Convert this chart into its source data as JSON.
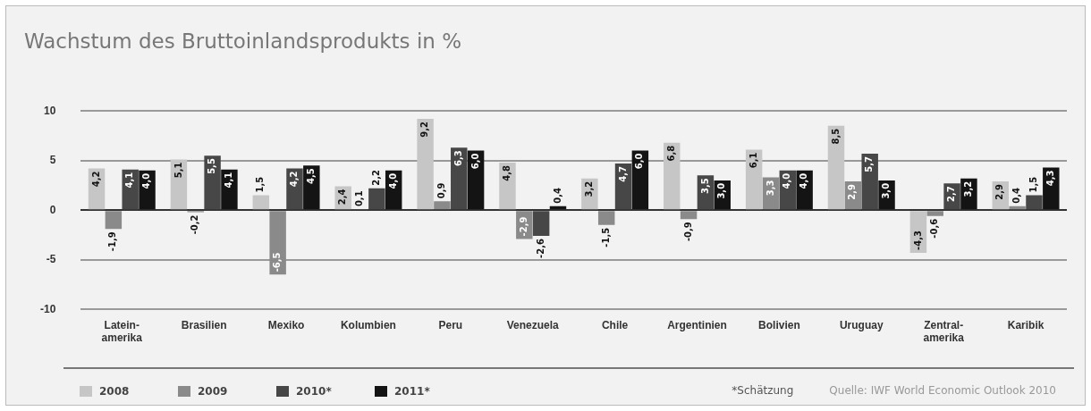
{
  "chart_data": {
    "type": "bar",
    "title": "Wachstum des Bruttoinlandsprodukts in %",
    "categories": [
      "Latein-\namerika",
      "Brasilien",
      "Mexiko",
      "Kolumbien",
      "Peru",
      "Venezuela",
      "Chile",
      "Argentinien",
      "Bolivien",
      "Uruguay",
      "Zentral-\namerika",
      "Karibik"
    ],
    "series": [
      {
        "name": "2008",
        "color": "#c6c6c6",
        "values": [
          4.2,
          5.1,
          1.5,
          2.4,
          9.2,
          4.8,
          3.2,
          6.8,
          6.1,
          8.5,
          -4.3,
          2.9
        ],
        "value_labels": [
          "4,2",
          "5,1",
          "1,5",
          "2,4",
          "9,2",
          "4,8",
          "3,2",
          "6,8",
          "6,1",
          "8,5",
          "-4,3",
          "2,9"
        ]
      },
      {
        "name": "2009",
        "color": "#8a8a8a",
        "values": [
          -1.9,
          -0.2,
          -6.5,
          0.1,
          0.9,
          -2.9,
          -1.5,
          -0.9,
          3.3,
          2.9,
          -0.6,
          0.4
        ],
        "value_labels": [
          "-1,9",
          "-0,2",
          "-6,5",
          "0,1",
          "0,9",
          "-2,9",
          "-1,5",
          "-0,9",
          "3,3",
          "2,9",
          "-0,6",
          "0,4"
        ]
      },
      {
        "name": "2010*",
        "color": "#474747",
        "values": [
          4.1,
          5.5,
          4.2,
          2.2,
          6.3,
          -2.6,
          4.7,
          3.5,
          4.0,
          5.7,
          2.7,
          1.5
        ],
        "value_labels": [
          "4,1",
          "5,5",
          "4,2",
          "2,2",
          "6,3",
          "-2,6",
          "4,7",
          "3,5",
          "4,0",
          "5,7",
          "2,7",
          "1,5"
        ]
      },
      {
        "name": "2011*",
        "color": "#141414",
        "values": [
          4.0,
          4.1,
          4.5,
          4.0,
          6.0,
          0.4,
          6.0,
          3.0,
          4.0,
          3.0,
          3.2,
          4.3
        ],
        "value_labels": [
          "4,0",
          "4,1",
          "4,5",
          "4,0",
          "6,0",
          "0,4",
          "6,0",
          "3,0",
          "4,0",
          "3,0",
          "3,2",
          "4,3"
        ]
      }
    ],
    "ylim": [
      -10,
      10
    ],
    "yticks": [
      -10,
      -5,
      0,
      5,
      10
    ],
    "grid": "y",
    "legend": "bottom left",
    "annotations": [
      "*Schätzung",
      "Quelle: IWF World Economic Outlook 2010"
    ]
  }
}
